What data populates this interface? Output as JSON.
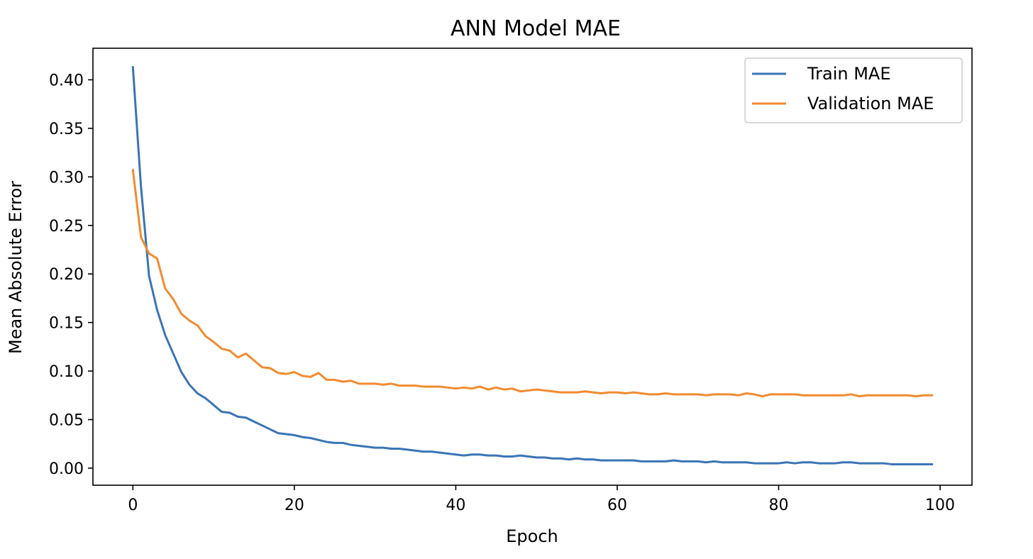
{
  "chart_data": {
    "type": "line",
    "title": "ANN Model MAE",
    "xlabel": "Epoch",
    "ylabel": "Mean Absolute Error",
    "xlim": [
      -4.95,
      103.95
    ],
    "ylim": [
      -0.0176,
      0.4325
    ],
    "xticks": [
      0,
      20,
      40,
      60,
      80,
      100
    ],
    "xtick_labels": [
      "0",
      "20",
      "40",
      "60",
      "80",
      "100"
    ],
    "yticks": [
      0.0,
      0.05,
      0.1,
      0.15,
      0.2,
      0.25,
      0.3,
      0.35,
      0.4
    ],
    "ytick_labels": [
      "0.00",
      "0.05",
      "0.10",
      "0.15",
      "0.20",
      "0.25",
      "0.30",
      "0.35",
      "0.40"
    ],
    "grid": false,
    "legend_position": "top-right",
    "x": [
      0,
      1,
      2,
      3,
      4,
      5,
      6,
      7,
      8,
      9,
      10,
      11,
      12,
      13,
      14,
      15,
      16,
      17,
      18,
      19,
      20,
      21,
      22,
      23,
      24,
      25,
      26,
      27,
      28,
      29,
      30,
      31,
      32,
      33,
      34,
      35,
      36,
      37,
      38,
      39,
      40,
      41,
      42,
      43,
      44,
      45,
      46,
      47,
      48,
      49,
      50,
      51,
      52,
      53,
      54,
      55,
      56,
      57,
      58,
      59,
      60,
      61,
      62,
      63,
      64,
      65,
      66,
      67,
      68,
      69,
      70,
      71,
      72,
      73,
      74,
      75,
      76,
      77,
      78,
      79,
      80,
      81,
      82,
      83,
      84,
      85,
      86,
      87,
      88,
      89,
      90,
      91,
      92,
      93,
      94,
      95,
      96,
      97,
      98,
      99
    ],
    "series": [
      {
        "name": "Train MAE",
        "color": "#3a75b5",
        "values": [
          0.413,
          0.29,
          0.198,
          0.163,
          0.137,
          0.118,
          0.099,
          0.086,
          0.077,
          0.072,
          0.065,
          0.058,
          0.057,
          0.053,
          0.052,
          0.048,
          0.044,
          0.04,
          0.036,
          0.035,
          0.034,
          0.032,
          0.031,
          0.029,
          0.027,
          0.026,
          0.026,
          0.024,
          0.023,
          0.022,
          0.021,
          0.021,
          0.02,
          0.02,
          0.019,
          0.018,
          0.017,
          0.017,
          0.016,
          0.015,
          0.014,
          0.013,
          0.014,
          0.014,
          0.013,
          0.013,
          0.012,
          0.012,
          0.013,
          0.012,
          0.011,
          0.011,
          0.01,
          0.01,
          0.009,
          0.01,
          0.009,
          0.009,
          0.008,
          0.008,
          0.008,
          0.008,
          0.008,
          0.007,
          0.007,
          0.007,
          0.007,
          0.008,
          0.007,
          0.007,
          0.007,
          0.006,
          0.007,
          0.006,
          0.006,
          0.006,
          0.006,
          0.005,
          0.005,
          0.005,
          0.005,
          0.006,
          0.005,
          0.006,
          0.006,
          0.005,
          0.005,
          0.005,
          0.006,
          0.006,
          0.005,
          0.005,
          0.005,
          0.005,
          0.004,
          0.004,
          0.004,
          0.004,
          0.004,
          0.004
        ]
      },
      {
        "name": "Validation MAE",
        "color": "#f28b30",
        "values": [
          0.307,
          0.238,
          0.221,
          0.216,
          0.185,
          0.174,
          0.159,
          0.152,
          0.147,
          0.136,
          0.13,
          0.123,
          0.121,
          0.114,
          0.118,
          0.111,
          0.104,
          0.103,
          0.098,
          0.097,
          0.099,
          0.095,
          0.094,
          0.098,
          0.091,
          0.091,
          0.089,
          0.09,
          0.087,
          0.087,
          0.087,
          0.086,
          0.087,
          0.085,
          0.085,
          0.085,
          0.084,
          0.084,
          0.084,
          0.083,
          0.082,
          0.083,
          0.082,
          0.084,
          0.081,
          0.083,
          0.081,
          0.082,
          0.079,
          0.08,
          0.081,
          0.08,
          0.079,
          0.078,
          0.078,
          0.078,
          0.079,
          0.078,
          0.077,
          0.078,
          0.078,
          0.077,
          0.078,
          0.077,
          0.076,
          0.076,
          0.077,
          0.076,
          0.076,
          0.076,
          0.076,
          0.075,
          0.076,
          0.076,
          0.076,
          0.075,
          0.077,
          0.076,
          0.074,
          0.076,
          0.076,
          0.076,
          0.076,
          0.075,
          0.075,
          0.075,
          0.075,
          0.075,
          0.075,
          0.076,
          0.074,
          0.075,
          0.075,
          0.075,
          0.075,
          0.075,
          0.075,
          0.074,
          0.075,
          0.075
        ]
      }
    ]
  }
}
